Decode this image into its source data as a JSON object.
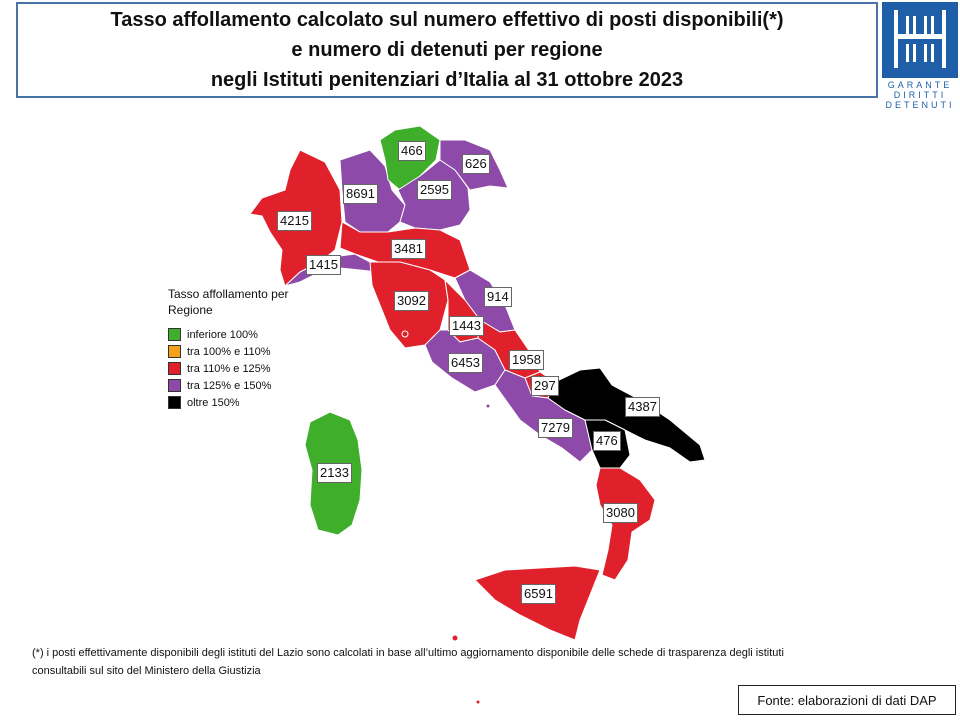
{
  "title": {
    "line1": "Tasso affollamento calcolato sul numero effettivo di posti disponibili(*)",
    "line2": "e numero di detenuti per regione",
    "line3": "negli Istituti penitenziari d’Italia al 31 ottobre 2023"
  },
  "logo": {
    "line1": "GARANTE",
    "line2": "DIRITTI",
    "line3": "DETENUTI",
    "color": "#1f5fa8"
  },
  "legend": {
    "title": "Tasso affollamento per Regione",
    "items": [
      {
        "label": "inferiore 100%",
        "color": "#3fae2a"
      },
      {
        "label": "tra 100% e 110%",
        "color": "#f7a11a"
      },
      {
        "label": "tra 110% e 125%",
        "color": "#e0202a"
      },
      {
        "label": "tra 125% e 150%",
        "color": "#8e4aa8"
      },
      {
        "label": "oltre 150%",
        "color": "#000000"
      }
    ]
  },
  "regions": [
    {
      "value": "466",
      "class": "inferiore 100%"
    },
    {
      "value": "626",
      "class": "tra 125% e 150%"
    },
    {
      "value": "8691",
      "class": "tra 125% e 150%"
    },
    {
      "value": "2595",
      "class": "tra 125% e 150%"
    },
    {
      "value": "4215",
      "class": "tra 110% e 125%"
    },
    {
      "value": "3481",
      "class": "tra 110% e 125%"
    },
    {
      "value": "1415",
      "class": "tra 125% e 150%"
    },
    {
      "value": "914",
      "class": "tra 125% e 150%"
    },
    {
      "value": "3092",
      "class": "tra 110% e 125%"
    },
    {
      "value": "1443",
      "class": "tra 110% e 125%"
    },
    {
      "value": "1958",
      "class": "tra 110% e 125%"
    },
    {
      "value": "6453",
      "class": "tra 125% e 150%"
    },
    {
      "value": "297",
      "class": "tra 110% e 125%"
    },
    {
      "value": "4387",
      "class": "oltre 150%"
    },
    {
      "value": "7279",
      "class": "tra 125% e 150%"
    },
    {
      "value": "476",
      "class": "oltre 150%"
    },
    {
      "value": "2133",
      "class": "inferiore 100%"
    },
    {
      "value": "3080",
      "class": "tra 110% e 125%"
    },
    {
      "value": "6591",
      "class": "tra 110% e 125%"
    }
  ],
  "footnote": {
    "line1": "(*) i posti effettivamente disponibili  degli istituti del Lazio sono calcolati in base all’ultimo aggiornamento disponibile  delle schede di trasparenza degli istituti",
    "line2": "consultabili sul sito del Ministero della Giustizia"
  },
  "source": "Fonte: elaborazioni di dati DAP"
}
